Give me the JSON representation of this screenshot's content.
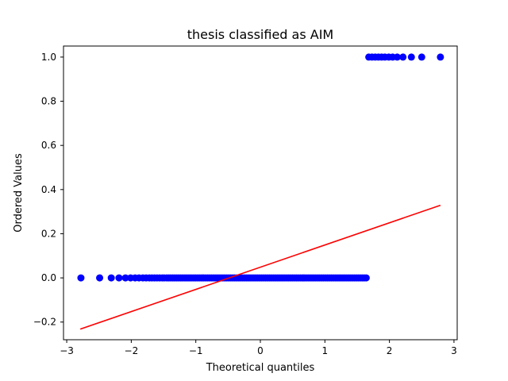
{
  "chart_data": {
    "type": "scatter",
    "title": "thesis classified as AIM",
    "xlabel": "Theoretical quantiles",
    "ylabel": "Ordered Values",
    "xlim": [
      -3.05,
      3.05
    ],
    "ylim": [
      -0.28,
      1.05
    ],
    "xticks": [
      -3,
      -2,
      -1,
      0,
      1,
      2,
      3
    ],
    "xtick_labels": [
      "−3",
      "−2",
      "−1",
      "0",
      "1",
      "2",
      "3"
    ],
    "yticks": [
      -0.2,
      0.0,
      0.2,
      0.4,
      0.6,
      0.8,
      1.0
    ],
    "ytick_labels": [
      "−0.2",
      "0.0",
      "0.2",
      "0.4",
      "0.6",
      "0.8",
      "1.0"
    ],
    "grid": false,
    "series": [
      {
        "kind": "points",
        "color": "#0000ff",
        "zero_points_x": [
          -2.78,
          -2.49,
          -2.31,
          -2.19,
          -2.09,
          -2.01,
          -1.94,
          -1.88,
          -1.82,
          -1.77,
          -1.72,
          -1.68,
          -1.64,
          -1.6,
          -1.56,
          -1.52,
          -1.49,
          -1.45,
          -1.42,
          -1.39,
          -1.36,
          -1.33,
          -1.3,
          -1.27,
          -1.24,
          -1.21,
          -1.18,
          -1.15,
          -1.12,
          -1.09,
          -1.06,
          -1.03,
          -1.0,
          -0.97,
          -0.94,
          -0.91,
          -0.88,
          -0.85,
          -0.82,
          -0.79,
          -0.76,
          -0.73,
          -0.7,
          -0.67,
          -0.64,
          -0.61,
          -0.58,
          -0.55,
          -0.52,
          -0.49,
          -0.46,
          -0.43,
          -0.4,
          -0.37,
          -0.34,
          -0.31,
          -0.28,
          -0.25,
          -0.22,
          -0.19,
          -0.16,
          -0.13,
          -0.1,
          -0.07,
          -0.04,
          -0.01,
          0.02,
          0.05,
          0.08,
          0.11,
          0.14,
          0.17,
          0.2,
          0.23,
          0.26,
          0.29,
          0.32,
          0.35,
          0.38,
          0.41,
          0.44,
          0.47,
          0.5,
          0.53,
          0.56,
          0.59,
          0.62,
          0.65,
          0.68,
          0.71,
          0.74,
          0.77,
          0.8,
          0.83,
          0.86,
          0.89,
          0.92,
          0.95,
          0.98,
          1.01,
          1.04,
          1.07,
          1.1,
          1.13,
          1.16,
          1.19,
          1.22,
          1.25,
          1.28,
          1.31,
          1.34,
          1.37,
          1.4,
          1.43,
          1.46,
          1.49,
          1.52,
          1.55,
          1.58,
          1.61,
          1.64
        ],
        "one_points_x": [
          1.68,
          1.73,
          1.78,
          1.83,
          1.88,
          1.93,
          1.99,
          2.05,
          2.12,
          2.21,
          2.34,
          2.5,
          2.79
        ]
      },
      {
        "kind": "line",
        "color": "#ff0000",
        "x": [
          -2.79,
          2.79
        ],
        "y": [
          -0.232,
          0.329
        ]
      }
    ]
  }
}
